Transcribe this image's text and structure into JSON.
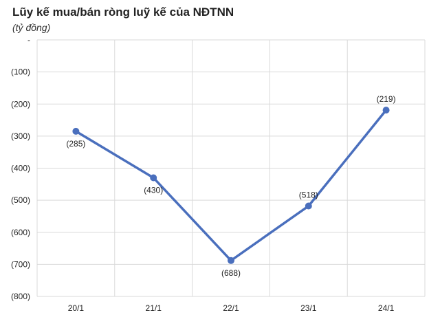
{
  "chart_data": {
    "type": "line",
    "title": "Lũy kế mua/bán ròng luỹ kế của NĐTNN",
    "subtitle": "(tỷ đồng)",
    "categories": [
      "20/1",
      "21/1",
      "22/1",
      "23/1",
      "24/1"
    ],
    "series": [
      {
        "values": [
          -285,
          -430,
          -688,
          -518,
          -219
        ]
      }
    ],
    "data_labels": [
      "(285)",
      "(430)",
      "(688)",
      "(518)",
      "(219)"
    ],
    "y_ticks": [
      0,
      -100,
      -200,
      -300,
      -400,
      -500,
      -600,
      -700,
      -800
    ],
    "y_tick_labels": [
      "-",
      "(100)",
      "(200)",
      "(300)",
      "(400)",
      "(500)",
      "(600)",
      "(700)",
      "(800)"
    ],
    "ylim": [
      -800,
      0
    ],
    "grid": true,
    "line_color": "#4a6fbd",
    "grid_color": "#d9d9d9"
  }
}
